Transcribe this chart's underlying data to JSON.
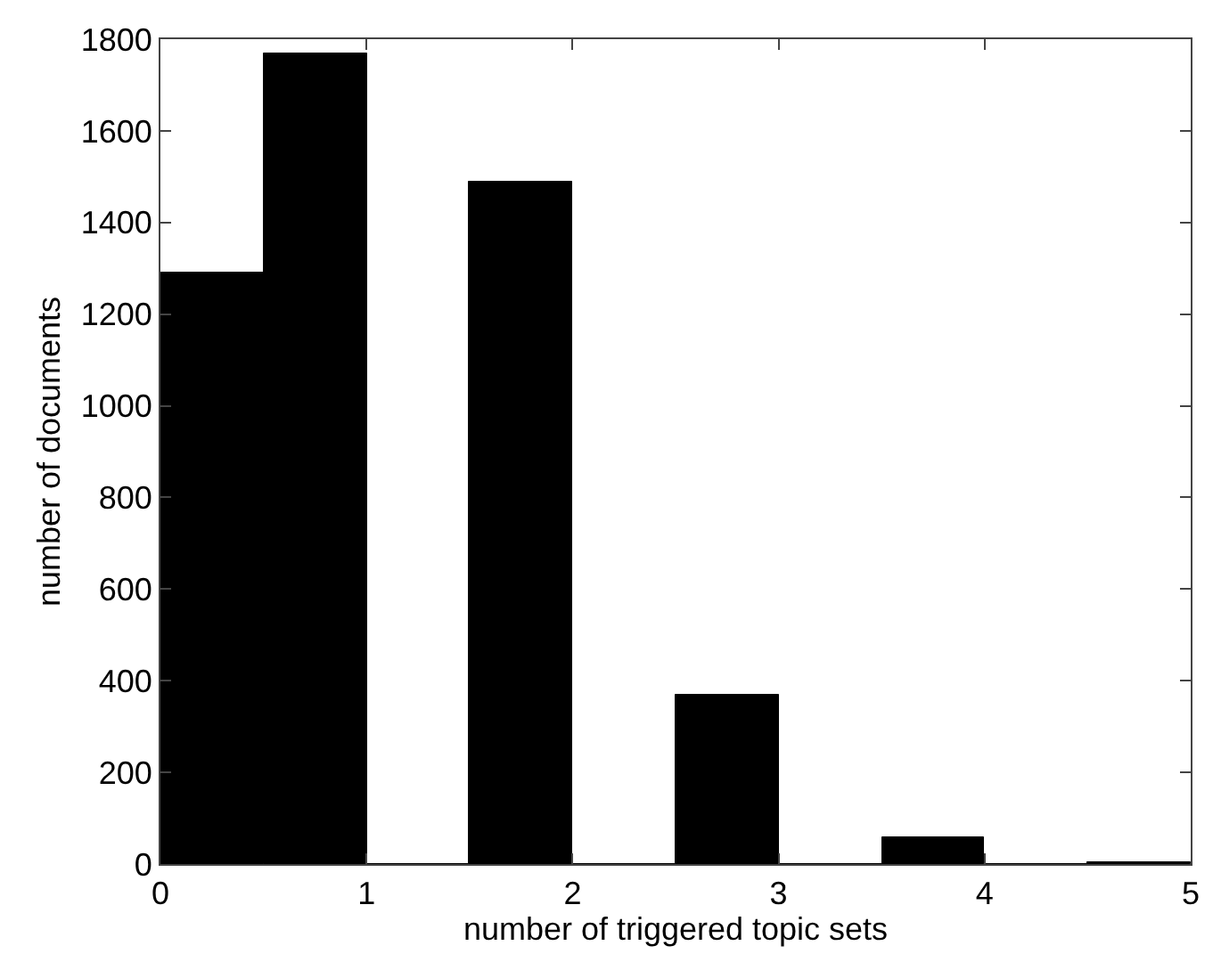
{
  "chart_data": {
    "type": "histogram",
    "xlabel": "number of triggered topic sets",
    "ylabel": "number of documents",
    "bins": [
      0,
      0.5,
      1,
      1.5,
      2,
      2.5,
      3,
      3.5,
      4,
      4.5,
      5
    ],
    "values": [
      1290,
      1770,
      0,
      1490,
      0,
      370,
      0,
      60,
      0,
      5
    ],
    "color": "#000000",
    "xlim": [
      0,
      5
    ],
    "xticks": [
      0,
      1,
      2,
      3,
      4,
      5
    ],
    "ylim": [
      0,
      1800
    ],
    "yticks": [
      0,
      200,
      400,
      600,
      800,
      1000,
      1200,
      1400,
      1600,
      1800
    ]
  }
}
